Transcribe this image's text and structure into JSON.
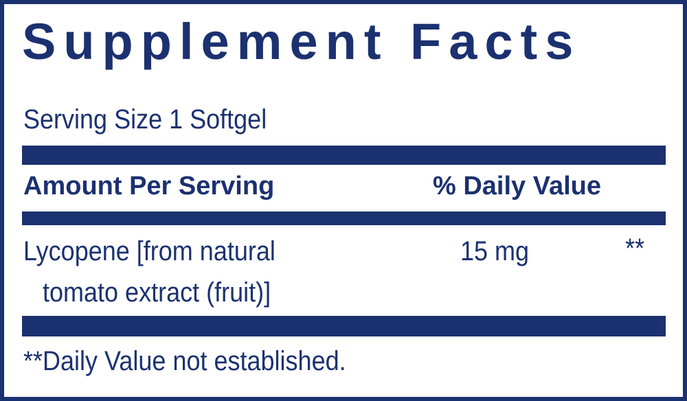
{
  "title": "Supplement Facts",
  "serving_size": "Serving Size 1 Softgel",
  "header": {
    "amount": "Amount Per Serving",
    "dv": "% Daily Value"
  },
  "ingredients": [
    {
      "name_line1": "Lycopene [from natural",
      "name_line2": "tomato extract (fruit)]",
      "amount": "15 mg",
      "dv": "**"
    }
  ],
  "footnote": "**Daily Value not established.",
  "colors": {
    "ink": "#1b3170"
  }
}
